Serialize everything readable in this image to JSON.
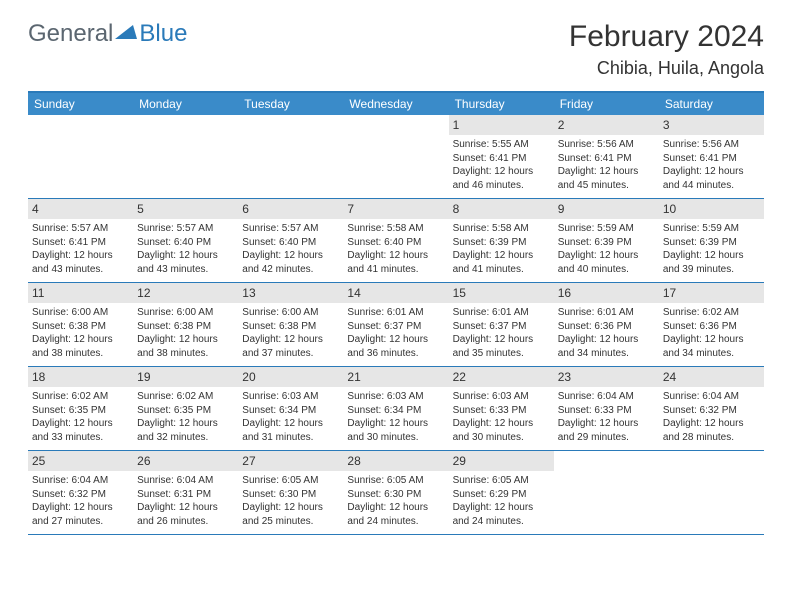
{
  "logo": {
    "general": "General",
    "blue": "Blue"
  },
  "title": "February 2024",
  "location": "Chibia, Huila, Angola",
  "colors": {
    "header_bar": "#3a8bc9",
    "accent_border": "#2a7ab9",
    "daynum_bg": "#e6e6e6",
    "text": "#333333",
    "logo_gray": "#5b6670",
    "logo_blue": "#2a7ab9",
    "background": "#ffffff"
  },
  "weekdays": [
    "Sunday",
    "Monday",
    "Tuesday",
    "Wednesday",
    "Thursday",
    "Friday",
    "Saturday"
  ],
  "weeks": [
    [
      {
        "empty": true
      },
      {
        "empty": true
      },
      {
        "empty": true
      },
      {
        "empty": true
      },
      {
        "day": "1",
        "sunrise": "Sunrise: 5:55 AM",
        "sunset": "Sunset: 6:41 PM",
        "daylight1": "Daylight: 12 hours",
        "daylight2": "and 46 minutes."
      },
      {
        "day": "2",
        "sunrise": "Sunrise: 5:56 AM",
        "sunset": "Sunset: 6:41 PM",
        "daylight1": "Daylight: 12 hours",
        "daylight2": "and 45 minutes."
      },
      {
        "day": "3",
        "sunrise": "Sunrise: 5:56 AM",
        "sunset": "Sunset: 6:41 PM",
        "daylight1": "Daylight: 12 hours",
        "daylight2": "and 44 minutes."
      }
    ],
    [
      {
        "day": "4",
        "sunrise": "Sunrise: 5:57 AM",
        "sunset": "Sunset: 6:41 PM",
        "daylight1": "Daylight: 12 hours",
        "daylight2": "and 43 minutes."
      },
      {
        "day": "5",
        "sunrise": "Sunrise: 5:57 AM",
        "sunset": "Sunset: 6:40 PM",
        "daylight1": "Daylight: 12 hours",
        "daylight2": "and 43 minutes."
      },
      {
        "day": "6",
        "sunrise": "Sunrise: 5:57 AM",
        "sunset": "Sunset: 6:40 PM",
        "daylight1": "Daylight: 12 hours",
        "daylight2": "and 42 minutes."
      },
      {
        "day": "7",
        "sunrise": "Sunrise: 5:58 AM",
        "sunset": "Sunset: 6:40 PM",
        "daylight1": "Daylight: 12 hours",
        "daylight2": "and 41 minutes."
      },
      {
        "day": "8",
        "sunrise": "Sunrise: 5:58 AM",
        "sunset": "Sunset: 6:39 PM",
        "daylight1": "Daylight: 12 hours",
        "daylight2": "and 41 minutes."
      },
      {
        "day": "9",
        "sunrise": "Sunrise: 5:59 AM",
        "sunset": "Sunset: 6:39 PM",
        "daylight1": "Daylight: 12 hours",
        "daylight2": "and 40 minutes."
      },
      {
        "day": "10",
        "sunrise": "Sunrise: 5:59 AM",
        "sunset": "Sunset: 6:39 PM",
        "daylight1": "Daylight: 12 hours",
        "daylight2": "and 39 minutes."
      }
    ],
    [
      {
        "day": "11",
        "sunrise": "Sunrise: 6:00 AM",
        "sunset": "Sunset: 6:38 PM",
        "daylight1": "Daylight: 12 hours",
        "daylight2": "and 38 minutes."
      },
      {
        "day": "12",
        "sunrise": "Sunrise: 6:00 AM",
        "sunset": "Sunset: 6:38 PM",
        "daylight1": "Daylight: 12 hours",
        "daylight2": "and 38 minutes."
      },
      {
        "day": "13",
        "sunrise": "Sunrise: 6:00 AM",
        "sunset": "Sunset: 6:38 PM",
        "daylight1": "Daylight: 12 hours",
        "daylight2": "and 37 minutes."
      },
      {
        "day": "14",
        "sunrise": "Sunrise: 6:01 AM",
        "sunset": "Sunset: 6:37 PM",
        "daylight1": "Daylight: 12 hours",
        "daylight2": "and 36 minutes."
      },
      {
        "day": "15",
        "sunrise": "Sunrise: 6:01 AM",
        "sunset": "Sunset: 6:37 PM",
        "daylight1": "Daylight: 12 hours",
        "daylight2": "and 35 minutes."
      },
      {
        "day": "16",
        "sunrise": "Sunrise: 6:01 AM",
        "sunset": "Sunset: 6:36 PM",
        "daylight1": "Daylight: 12 hours",
        "daylight2": "and 34 minutes."
      },
      {
        "day": "17",
        "sunrise": "Sunrise: 6:02 AM",
        "sunset": "Sunset: 6:36 PM",
        "daylight1": "Daylight: 12 hours",
        "daylight2": "and 34 minutes."
      }
    ],
    [
      {
        "day": "18",
        "sunrise": "Sunrise: 6:02 AM",
        "sunset": "Sunset: 6:35 PM",
        "daylight1": "Daylight: 12 hours",
        "daylight2": "and 33 minutes."
      },
      {
        "day": "19",
        "sunrise": "Sunrise: 6:02 AM",
        "sunset": "Sunset: 6:35 PM",
        "daylight1": "Daylight: 12 hours",
        "daylight2": "and 32 minutes."
      },
      {
        "day": "20",
        "sunrise": "Sunrise: 6:03 AM",
        "sunset": "Sunset: 6:34 PM",
        "daylight1": "Daylight: 12 hours",
        "daylight2": "and 31 minutes."
      },
      {
        "day": "21",
        "sunrise": "Sunrise: 6:03 AM",
        "sunset": "Sunset: 6:34 PM",
        "daylight1": "Daylight: 12 hours",
        "daylight2": "and 30 minutes."
      },
      {
        "day": "22",
        "sunrise": "Sunrise: 6:03 AM",
        "sunset": "Sunset: 6:33 PM",
        "daylight1": "Daylight: 12 hours",
        "daylight2": "and 30 minutes."
      },
      {
        "day": "23",
        "sunrise": "Sunrise: 6:04 AM",
        "sunset": "Sunset: 6:33 PM",
        "daylight1": "Daylight: 12 hours",
        "daylight2": "and 29 minutes."
      },
      {
        "day": "24",
        "sunrise": "Sunrise: 6:04 AM",
        "sunset": "Sunset: 6:32 PM",
        "daylight1": "Daylight: 12 hours",
        "daylight2": "and 28 minutes."
      }
    ],
    [
      {
        "day": "25",
        "sunrise": "Sunrise: 6:04 AM",
        "sunset": "Sunset: 6:32 PM",
        "daylight1": "Daylight: 12 hours",
        "daylight2": "and 27 minutes."
      },
      {
        "day": "26",
        "sunrise": "Sunrise: 6:04 AM",
        "sunset": "Sunset: 6:31 PM",
        "daylight1": "Daylight: 12 hours",
        "daylight2": "and 26 minutes."
      },
      {
        "day": "27",
        "sunrise": "Sunrise: 6:05 AM",
        "sunset": "Sunset: 6:30 PM",
        "daylight1": "Daylight: 12 hours",
        "daylight2": "and 25 minutes."
      },
      {
        "day": "28",
        "sunrise": "Sunrise: 6:05 AM",
        "sunset": "Sunset: 6:30 PM",
        "daylight1": "Daylight: 12 hours",
        "daylight2": "and 24 minutes."
      },
      {
        "day": "29",
        "sunrise": "Sunrise: 6:05 AM",
        "sunset": "Sunset: 6:29 PM",
        "daylight1": "Daylight: 12 hours",
        "daylight2": "and 24 minutes."
      },
      {
        "empty": true
      },
      {
        "empty": true
      }
    ]
  ]
}
